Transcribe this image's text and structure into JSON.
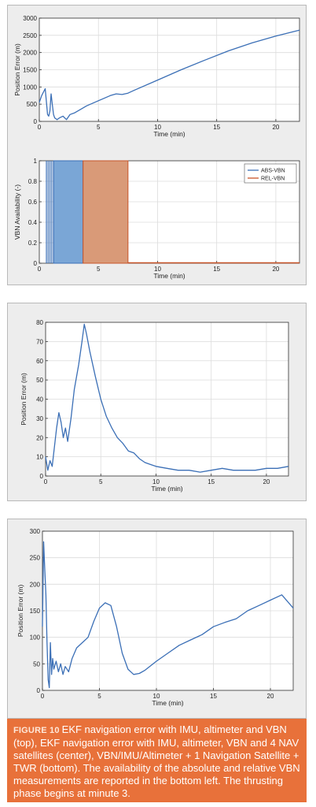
{
  "figure": {
    "label": "FIGURE 10",
    "caption": "EKF navigation error with IMU, altimeter and VBN (top), EKF navigation error with IMU, altimeter, VBN and 4 NAV satellites (center), VBN/IMU/Altimeter + 1 Navigation Satellite + TWR (bottom). The availability of the absolute and relative VBN measurements are reported in the bottom left. The thrusting phase begins at minute 3."
  },
  "chart_data": [
    {
      "id": "top-position-error",
      "type": "line",
      "xlabel": "Time (min)",
      "ylabel": "Position Error (m)",
      "xlim": [
        0,
        22
      ],
      "ylim": [
        0,
        3000
      ],
      "xticks": [
        0,
        5,
        10,
        15,
        20
      ],
      "yticks": [
        0,
        500,
        1000,
        1500,
        2000,
        2500,
        3000
      ],
      "grid": true,
      "series": [
        {
          "color": "#3b6fb6",
          "x": [
            0,
            0.2,
            0.5,
            0.7,
            0.8,
            0.9,
            1.0,
            1.1,
            1.2,
            1.3,
            1.5,
            1.7,
            2.0,
            2.3,
            2.6,
            3.0,
            3.5,
            4.0,
            5.0,
            6.0,
            6.5,
            7.0,
            7.5,
            8.0,
            10.0,
            12.0,
            14.0,
            16.0,
            18.0,
            20.0,
            22.0
          ],
          "y": [
            550,
            750,
            950,
            200,
            150,
            300,
            800,
            500,
            200,
            100,
            50,
            100,
            150,
            50,
            200,
            250,
            350,
            450,
            600,
            750,
            800,
            780,
            820,
            900,
            1200,
            1500,
            1780,
            2050,
            2280,
            2480,
            2650
          ]
        }
      ]
    },
    {
      "id": "vbn-availability",
      "type": "area",
      "xlabel": "Time (min)",
      "ylabel": "VBN Availability (-)",
      "xlim": [
        0,
        22
      ],
      "ylim": [
        0,
        1
      ],
      "xticks": [
        0,
        5,
        10,
        15,
        20
      ],
      "yticks": [
        0,
        0.2,
        0.4,
        0.6,
        0.8,
        1
      ],
      "grid": true,
      "legend_position": "top-right",
      "series": [
        {
          "name": "ABS-VBN",
          "color": "#3b6fb6",
          "fill": "#7aa6d6",
          "spikes_x": [
            0.6,
            0.75,
            0.9,
            1.05,
            1.2
          ],
          "on_from": 1.2,
          "on_to": 3.7
        },
        {
          "name": "REL-VBN",
          "color": "#c8552a",
          "fill": "#d99a78",
          "on_from": 3.7,
          "on_to": 7.5
        }
      ]
    },
    {
      "id": "center-position-error",
      "type": "line",
      "xlabel": "Time (min)",
      "ylabel": "Position Error (m)",
      "xlim": [
        0,
        22
      ],
      "ylim": [
        0,
        80
      ],
      "xticks": [
        0,
        5,
        10,
        15,
        20
      ],
      "yticks": [
        0,
        10,
        20,
        30,
        40,
        50,
        60,
        70,
        80
      ],
      "grid": true,
      "series": [
        {
          "color": "#3b6fb6",
          "x": [
            0,
            0.2,
            0.4,
            0.6,
            0.8,
            1.0,
            1.2,
            1.4,
            1.6,
            1.8,
            2.0,
            2.3,
            2.6,
            3.0,
            3.3,
            3.5,
            3.7,
            4.0,
            4.5,
            5.0,
            5.5,
            6.0,
            6.5,
            7.0,
            7.5,
            8.0,
            8.5,
            9.0,
            9.5,
            10.0,
            11,
            12,
            13,
            14,
            15,
            16,
            17,
            18,
            19,
            20,
            21,
            22
          ],
          "y": [
            10,
            3,
            8,
            5,
            15,
            25,
            33,
            28,
            20,
            25,
            18,
            30,
            45,
            58,
            70,
            79,
            74,
            65,
            52,
            40,
            31,
            25,
            20,
            17,
            13,
            12,
            9,
            7,
            6,
            5,
            4,
            3,
            3,
            2,
            3,
            4,
            3,
            3,
            3,
            4,
            4,
            5
          ]
        }
      ]
    },
    {
      "id": "bottom-position-error",
      "type": "line",
      "xlabel": "Time (min)",
      "ylabel": "Position Error (m)",
      "xlim": [
        0,
        22
      ],
      "ylim": [
        0,
        300
      ],
      "xticks": [
        0,
        5,
        10,
        15,
        20
      ],
      "yticks": [
        0,
        50,
        100,
        150,
        200,
        250,
        300
      ],
      "grid": true,
      "series": [
        {
          "color": "#3b6fb6",
          "x": [
            0,
            0.1,
            0.2,
            0.3,
            0.4,
            0.5,
            0.6,
            0.7,
            0.8,
            0.9,
            1.0,
            1.2,
            1.4,
            1.6,
            1.8,
            2.0,
            2.3,
            2.6,
            3.0,
            3.5,
            4.0,
            4.5,
            5.0,
            5.5,
            6.0,
            6.5,
            7.0,
            7.5,
            8.0,
            8.5,
            9.0,
            10,
            11,
            12,
            13,
            14,
            15,
            16,
            17,
            18,
            19,
            20,
            21,
            22
          ],
          "y": [
            120,
            280,
            230,
            180,
            90,
            20,
            5,
            90,
            30,
            60,
            40,
            55,
            35,
            50,
            30,
            45,
            35,
            60,
            80,
            90,
            100,
            130,
            155,
            165,
            160,
            120,
            70,
            40,
            30,
            32,
            38,
            55,
            70,
            85,
            95,
            105,
            120,
            128,
            135,
            150,
            160,
            170,
            180,
            155
          ]
        }
      ]
    }
  ]
}
